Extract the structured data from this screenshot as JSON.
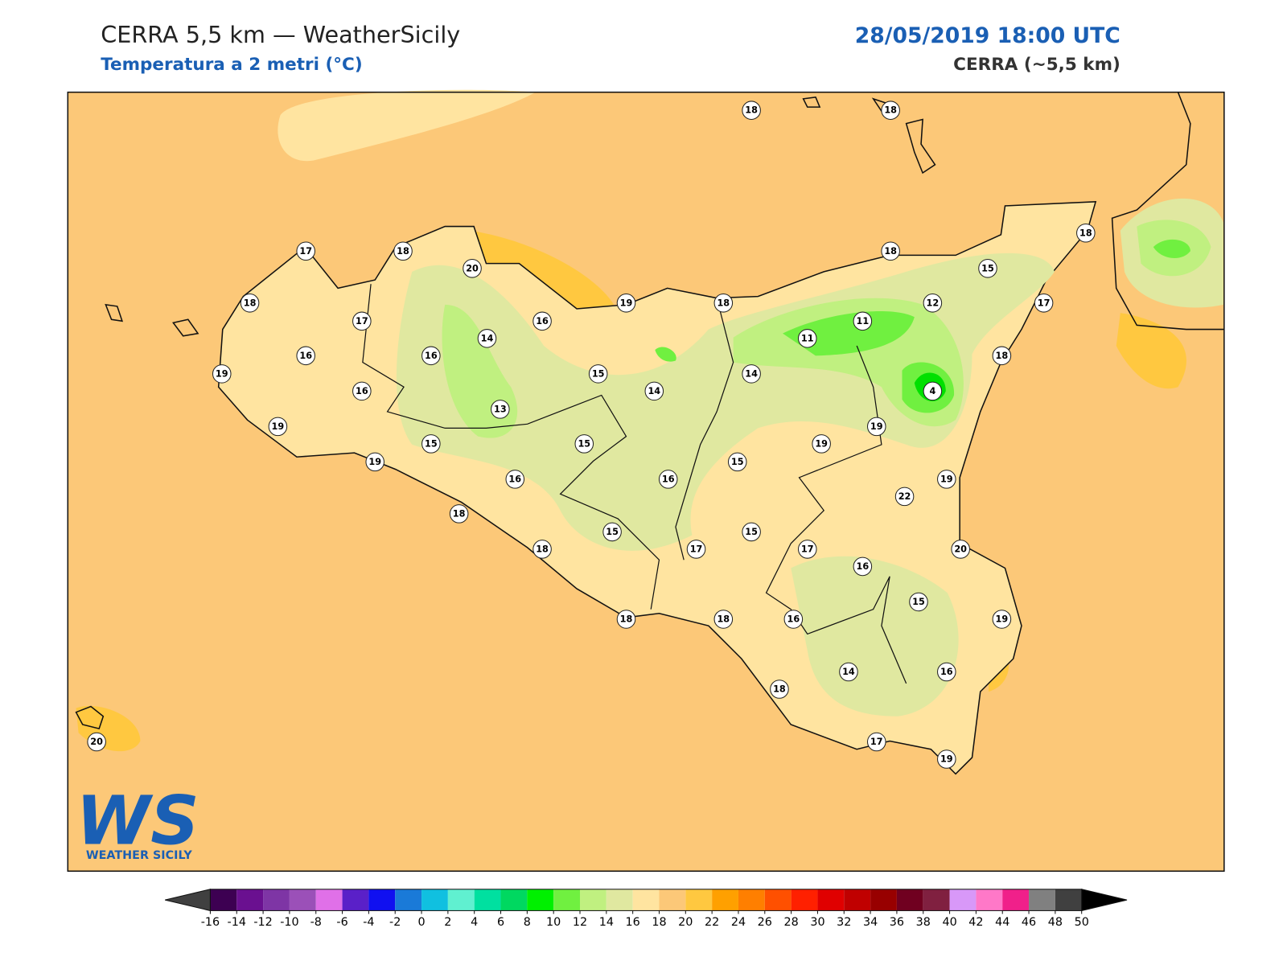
{
  "header": {
    "title": "CERRA 5,5 km — WeatherSicily",
    "subtitle": "Temperatura a 2 metri (°C)",
    "datetime": "28/05/2019 18:00 UTC",
    "model": "CERRA (~5,5 km)"
  },
  "stations": [
    18,
    18,
    17,
    18,
    20,
    18,
    18,
    15,
    18,
    17,
    19,
    18,
    12,
    17,
    16,
    14,
    11,
    11,
    16,
    16,
    18,
    19,
    15,
    14,
    16,
    14,
    4,
    13,
    19,
    19,
    15,
    15,
    19,
    19,
    15,
    16,
    16,
    19,
    22,
    18,
    15,
    15,
    18,
    17,
    17,
    20,
    16,
    15,
    18,
    18,
    16,
    19,
    14,
    16,
    18,
    20,
    17,
    19
  ],
  "colorbar": {
    "ticks": [
      -16,
      -14,
      -12,
      -10,
      -8,
      -6,
      -4,
      -2,
      0,
      2,
      4,
      6,
      8,
      10,
      12,
      14,
      16,
      18,
      20,
      22,
      24,
      26,
      28,
      30,
      32,
      34,
      36,
      38,
      40,
      42,
      44,
      46,
      48,
      50
    ],
    "colors": [
      "#3d0052",
      "#6a1090",
      "#7e35a5",
      "#9b50b8",
      "#e070e8",
      "#5a20c8",
      "#1010f0",
      "#1a7ad8",
      "#10c0e0",
      "#60f0d0",
      "#00e0a0",
      "#00d860",
      "#00f000",
      "#70f040",
      "#c0f080",
      "#e0e8a0",
      "#ffe4a0",
      "#fcc878",
      "#ffc840",
      "#ffa000",
      "#ff7f00",
      "#ff5000",
      "#ff2000",
      "#e00000",
      "#c00000",
      "#980000",
      "#700020",
      "#802040",
      "#d898f8",
      "#ff78c8",
      "#f0208a",
      "#808080",
      "#404040"
    ],
    "under_color": "#404040",
    "over_color": "#000000"
  },
  "logo": {
    "letters": "WS",
    "name": "WEATHER SICILY"
  }
}
